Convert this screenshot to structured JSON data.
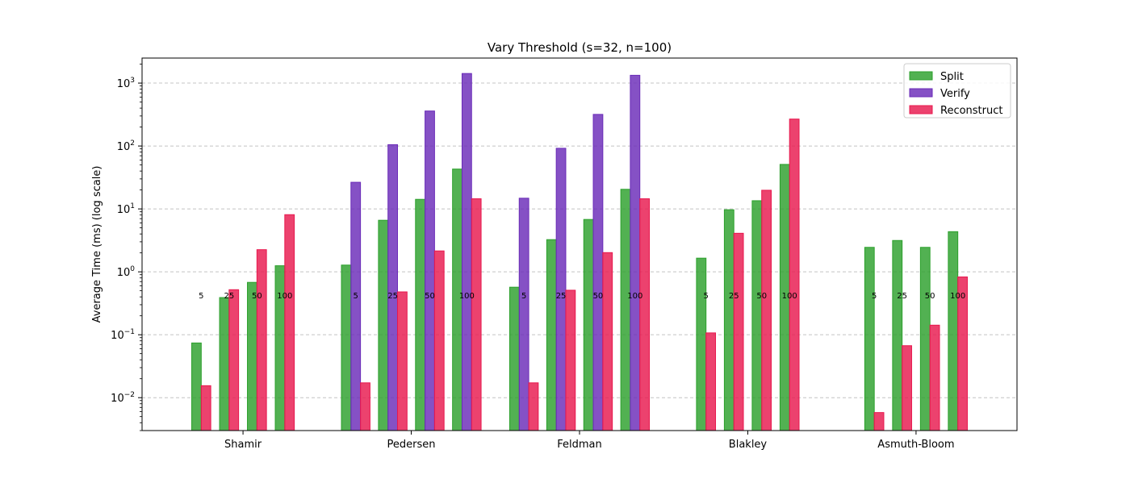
{
  "chart_data": {
    "type": "bar",
    "title": "Vary Threshold (s=32, n=100)",
    "xlabel": "",
    "ylabel": "Average Time (ms) (log scale)",
    "y_scale": "log",
    "ylim": [
      0.003,
      2500
    ],
    "y_ticks": [
      0.01,
      0.1,
      1,
      10,
      100,
      1000
    ],
    "y_tick_labels": [
      {
        "base": "10",
        "exp": "−2"
      },
      {
        "base": "10",
        "exp": "−1"
      },
      {
        "base": "10",
        "exp": "0"
      },
      {
        "base": "10",
        "exp": "1"
      },
      {
        "base": "10",
        "exp": "2"
      },
      {
        "base": "10",
        "exp": "3"
      }
    ],
    "grid": "horizontal dashed",
    "legend_position": "top-right",
    "categories": [
      "Shamir",
      "Pedersen",
      "Feldman",
      "Blakley",
      "Asmuth-Bloom"
    ],
    "thresholds": [
      "5",
      "25",
      "50",
      "100"
    ],
    "series": [
      {
        "name": "Split",
        "color": "#2ca02c",
        "values": [
          [
            0.074,
            0.39,
            0.68,
            1.25
          ],
          [
            1.28,
            6.6,
            14.2,
            43
          ],
          [
            0.57,
            3.25,
            6.8,
            20.5
          ],
          [
            1.65,
            9.7,
            13.5,
            51
          ],
          [
            2.45,
            3.15,
            2.45,
            4.35
          ]
        ]
      },
      {
        "name": "Verify",
        "color": "#6a2bb8",
        "values": [
          [
            null,
            null,
            null,
            null
          ],
          [
            26.5,
            105,
            360,
            1420
          ],
          [
            14.8,
            92,
            318,
            1330
          ],
          [
            null,
            null,
            null,
            null
          ],
          [
            null,
            null,
            null,
            null
          ]
        ]
      },
      {
        "name": "Reconstruct",
        "color": "#e8184e",
        "values": [
          [
            0.0155,
            0.52,
            2.25,
            8.1
          ],
          [
            0.0172,
            0.48,
            2.15,
            14.5
          ],
          [
            0.0172,
            0.51,
            2.02,
            14.5
          ],
          [
            0.107,
            4.1,
            19.8,
            268
          ],
          [
            0.0058,
            0.067,
            0.142,
            0.83
          ]
        ]
      }
    ]
  }
}
